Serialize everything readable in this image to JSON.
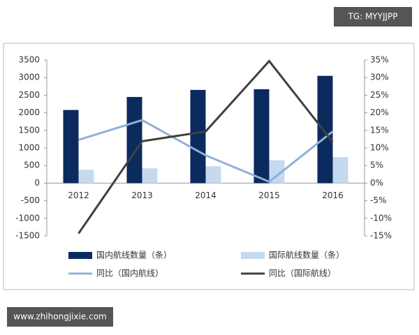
{
  "chart_data": {
    "type": "bar-line",
    "categories": [
      "2012",
      "2013",
      "2014",
      "2015",
      "2016"
    ],
    "series": [
      {
        "name": "国内航线数量（条）",
        "type": "bar",
        "axis": "y",
        "color": "#0b2a5e",
        "values": [
          2080,
          2450,
          2650,
          2670,
          3050
        ]
      },
      {
        "name": "国际航线数量（条）",
        "type": "bar",
        "axis": "y",
        "color": "#c5d9ef",
        "values": [
          380,
          420,
          480,
          650,
          740
        ]
      },
      {
        "name": "同比（国内航线）",
        "type": "line",
        "axis": "y2",
        "color": "#8fb0d8",
        "values": [
          12.3,
          17.9,
          7.9,
          0.4,
          14.7
        ]
      },
      {
        "name": "同比（国际航线）",
        "type": "line",
        "axis": "y2",
        "color": "#404040",
        "values": [
          -14.3,
          11.9,
          14.7,
          34.7,
          11.7
        ]
      }
    ],
    "ylim": [
      -1500,
      3500
    ],
    "yticks": [
      -1500,
      -1000,
      -500,
      0,
      500,
      1000,
      1500,
      2000,
      2500,
      3000,
      3500
    ],
    "y2lim": [
      -15,
      35
    ],
    "y2ticks": [
      {
        "value": -15,
        "label": "-15%"
      },
      {
        "value": -10,
        "label": "-10%"
      },
      {
        "value": -5,
        "label": "-5%"
      },
      {
        "value": 0,
        "label": "0%"
      },
      {
        "value": 5,
        "label": "5%"
      },
      {
        "value": 10,
        "label": "10%"
      },
      {
        "value": 15,
        "label": "15%"
      },
      {
        "value": 20,
        "label": "20%"
      },
      {
        "value": 25,
        "label": "25%"
      },
      {
        "value": 30,
        "label": "30%"
      },
      {
        "value": 35,
        "label": "35%"
      }
    ],
    "grid": false,
    "legend": "bottom"
  },
  "watermarks": [
    "TG: MYYJJPP",
    "www.zhihongjixie.com"
  ]
}
